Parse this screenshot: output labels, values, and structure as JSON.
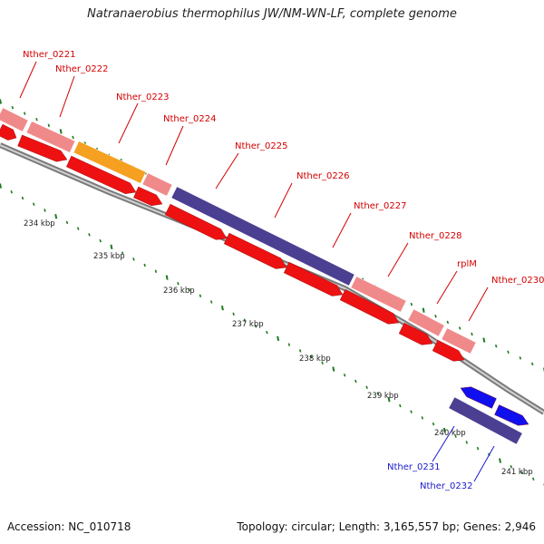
{
  "title": "Natranaerobius thermophilus JW/NM-WN-LF, complete genome",
  "colors": {
    "backbone": "#8a8a8a",
    "tick": "#1f7a1f",
    "label_red": "#d40000",
    "label_blue": "#1a1acc",
    "gene_pink": "#f08a8a",
    "gene_orange": "#f5a020",
    "gene_purple": "#4b3f92",
    "cds_red": "#ee1111",
    "cds_blue": "#1010ee"
  },
  "kbp_labels": [
    "234 kbp",
    "235 kbp",
    "236 kbp",
    "237 kbp",
    "238 kbp",
    "239 kbp",
    "240 kbp",
    "241 kbp"
  ],
  "genes": [
    {
      "label": "Nther_0221",
      "color": "label_red"
    },
    {
      "label": "Nther_0222",
      "color": "label_red"
    },
    {
      "label": "Nther_0223",
      "color": "label_red"
    },
    {
      "label": "Nther_0224",
      "color": "label_red"
    },
    {
      "label": "Nther_0225",
      "color": "label_red"
    },
    {
      "label": "Nther_0226",
      "color": "label_red"
    },
    {
      "label": "Nther_0227",
      "color": "label_red"
    },
    {
      "label": "Nther_0228",
      "color": "label_red"
    },
    {
      "label": "rplM",
      "color": "label_red"
    },
    {
      "label": "Nther_0230",
      "color": "label_red"
    },
    {
      "label": "Nther_0231",
      "color": "label_blue"
    },
    {
      "label": "Nther_0232",
      "color": "label_blue"
    }
  ],
  "footer": {
    "accession": "Accession: NC_010718",
    "summary": "Topology: circular; Length: 3,165,557 bp; Genes: 2,946"
  }
}
